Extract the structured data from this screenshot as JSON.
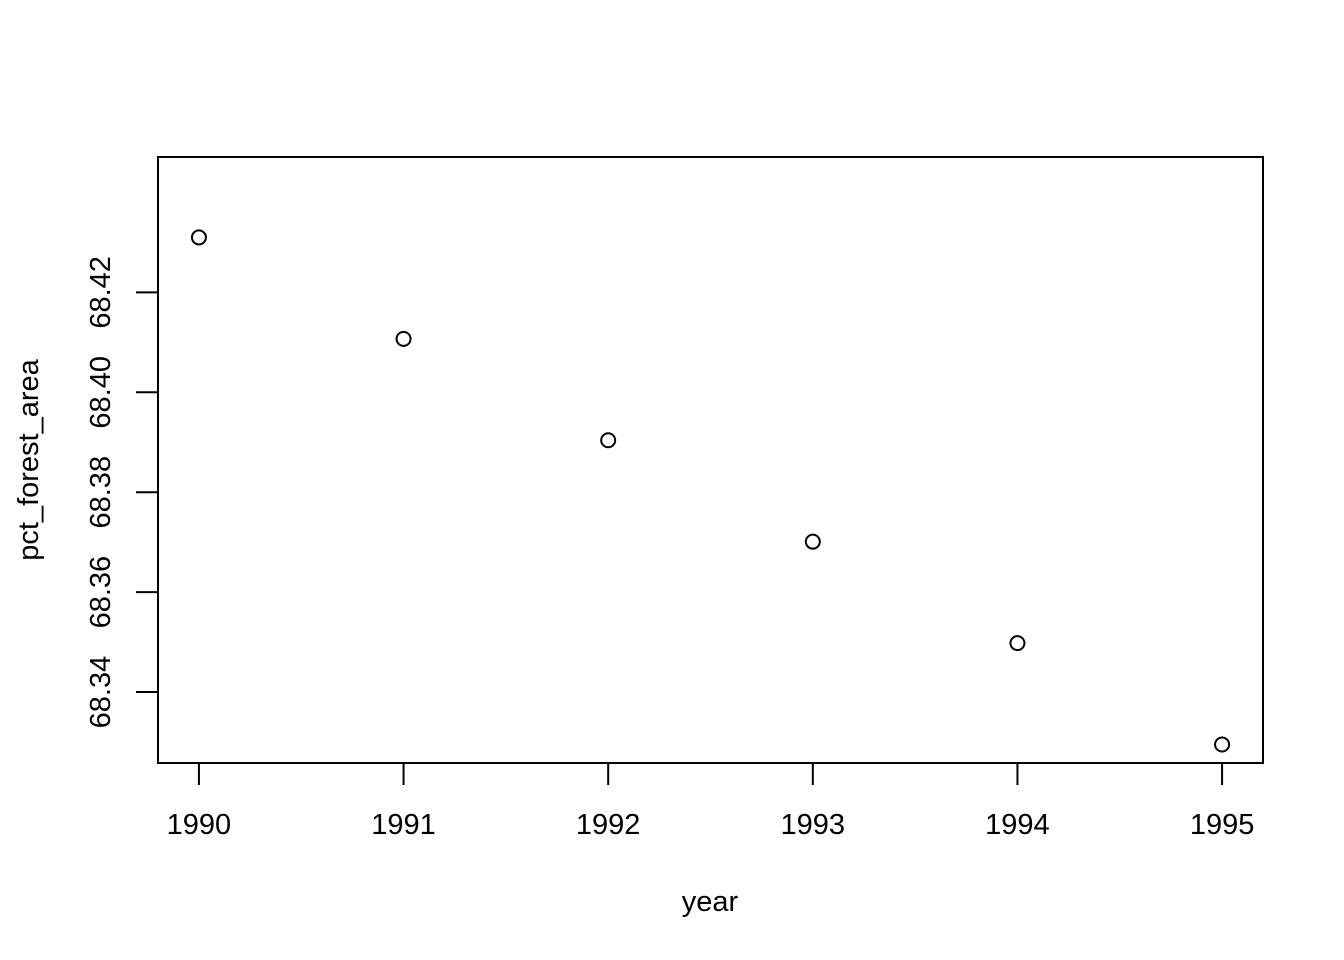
{
  "chart_data": {
    "type": "scatter",
    "title": "",
    "xlabel": "year",
    "ylabel": "pct_forest_area",
    "x": [
      1990,
      1991,
      1992,
      1993,
      1994,
      1995
    ],
    "y": [
      68.431,
      68.4107,
      68.3904,
      68.3701,
      68.3498,
      68.3295
    ],
    "xlim": [
      1989.8,
      1995.2
    ],
    "ylim": [
      68.3258,
      68.4471
    ],
    "xticks": [
      1990,
      1991,
      1992,
      1993,
      1994,
      1995
    ],
    "xtick_labels": [
      "1990",
      "1991",
      "1992",
      "1993",
      "1994",
      "1995"
    ],
    "yticks": [
      68.34,
      68.36,
      68.38,
      68.4,
      68.42
    ],
    "ytick_labels": [
      "68.34",
      "68.36",
      "68.38",
      "68.40",
      "68.42"
    ],
    "marker": "open-circle",
    "grid": false,
    "legend": "none",
    "colors": {
      "marker": "#000000",
      "axis": "#000000",
      "background": "#ffffff"
    }
  }
}
